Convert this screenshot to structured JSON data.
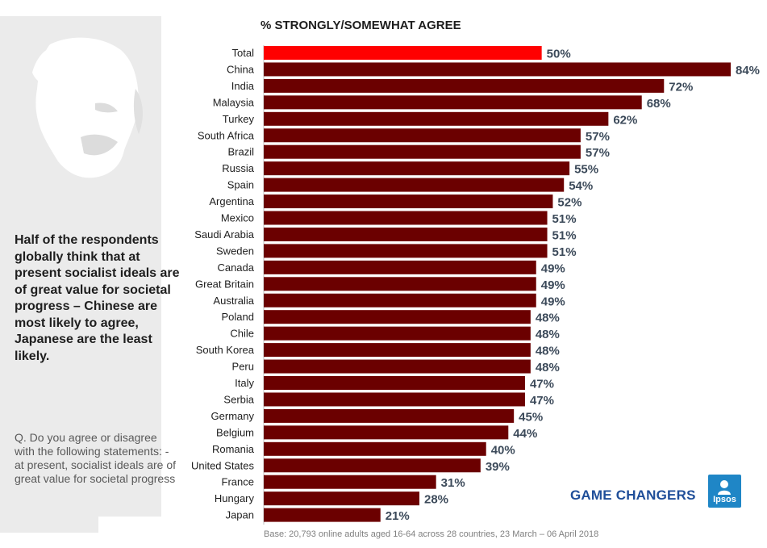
{
  "headline": "Half of the respondents globally think that at present socialist ideals are of great value for societal progress –  Chinese are most likely to agree, Japanese are the least likely.",
  "question": "Q. Do you agree or disagree with the following statements: - at present, socialist ideals are of great value for societal progress",
  "brand": {
    "tagline": "GAME CHANGERS",
    "logo_text": "Ipsos"
  },
  "footnote": "Base: 20,793 online adults aged 16-64 across 28 countries,  23 March – 06 April 2018",
  "colors": {
    "highlight": "#ff0000",
    "bar": "#6b0000",
    "value_text": "#3c4a5a"
  },
  "chart_data": {
    "type": "bar",
    "orientation": "horizontal",
    "title": "% STRONGLY/SOMEWHAT AGREE",
    "categories": [
      "Total",
      "China",
      "India",
      "Malaysia",
      "Turkey",
      "South Africa",
      "Brazil",
      "Russia",
      "Spain",
      "Argentina",
      "Mexico",
      "Saudi Arabia",
      "Sweden",
      "Canada",
      "Great Britain",
      "Australia",
      "Poland",
      "Chile",
      "South Korea",
      "Peru",
      "Italy",
      "Serbia",
      "Germany",
      "Belgium",
      "Romania",
      "United States",
      "France",
      "Hungary",
      "Japan"
    ],
    "values": [
      50,
      84,
      72,
      68,
      62,
      57,
      57,
      55,
      54,
      52,
      51,
      51,
      51,
      49,
      49,
      49,
      48,
      48,
      48,
      48,
      47,
      47,
      45,
      44,
      40,
      39,
      31,
      28,
      21
    ],
    "labels": [
      "50%",
      "84%",
      "72%",
      "68%",
      "62%",
      "57%",
      "57%",
      "55%",
      "54%",
      "52%",
      "51%",
      "51%",
      "51%",
      "49%",
      "49%",
      "49%",
      "48%",
      "48%",
      "48%",
      "48%",
      "47%",
      "47%",
      "45%",
      "44%",
      "40%",
      "39%",
      "31%",
      "28%",
      "21%"
    ],
    "highlight_category": "Total",
    "xlim": [
      0,
      84
    ],
    "xlabel": "",
    "ylabel": ""
  }
}
